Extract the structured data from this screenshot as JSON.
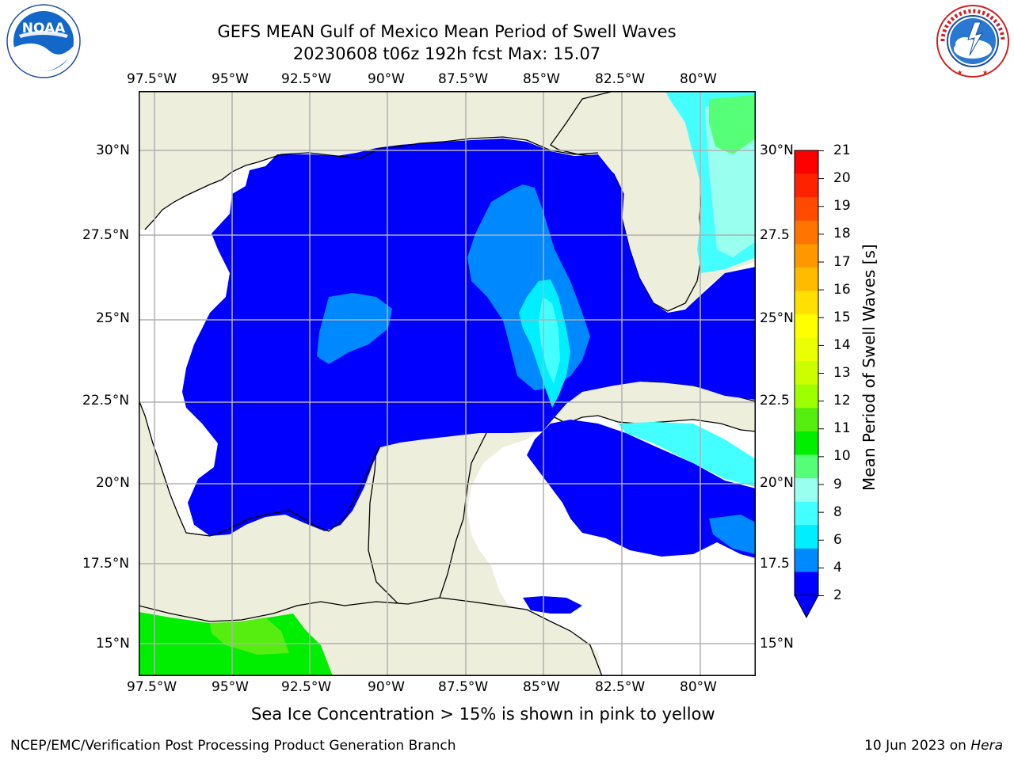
{
  "title": {
    "line1": "GEFS MEAN Gulf of Mexico Mean Period of Swell Waves",
    "line2": "20230608 t06z 192h fcst   Max: 15.07"
  },
  "logos": {
    "left": {
      "icon": "noaa-logo",
      "text": "NOAA",
      "ring_text": "NATIONAL OCEANIC AND ATMOSPHERIC ADMINISTRATION · U.S. DEPARTMENT OF COMMERCE"
    },
    "right": {
      "icon": "nws-logo",
      "ring_text": "NATIONAL WEATHER SERVICE"
    }
  },
  "map": {
    "lon_ticks": [
      "97.5°W",
      "95°W",
      "92.5°W",
      "90°W",
      "87.5°W",
      "85°W",
      "82.5°W",
      "80°W"
    ],
    "lat_ticks_left": [
      "30°N",
      "27.5°N",
      "25°N",
      "22.5°N",
      "20°N",
      "17.5°N",
      "15°N"
    ],
    "lat_ticks_right": [
      "30°N",
      "27.5",
      "25°N",
      "22.5",
      "20°N",
      "17.5",
      "15°N"
    ],
    "colors": {
      "land": "#eeeedd",
      "ocean_low": "#0000ff",
      "grid": "#b0b0b0"
    }
  },
  "colorbar": {
    "label": "Mean Period of Swell Waves [s]",
    "ticks": [
      "21",
      "20",
      "19",
      "18",
      "17",
      "16",
      "15",
      "14",
      "13",
      "12",
      "11",
      "10",
      "9",
      "8",
      "6",
      "4",
      "2"
    ],
    "colors": [
      "#ff0000",
      "#ff2200",
      "#ff4a00",
      "#ff7500",
      "#ff9800",
      "#ffbb00",
      "#ffe000",
      "#ffff00",
      "#eaff00",
      "#cbff00",
      "#9dff00",
      "#55ee10",
      "#00ee00",
      "#55ff77",
      "#99ffee",
      "#44ffff",
      "#00eeff",
      "#0088ff",
      "#0000ff"
    ]
  },
  "footer": {
    "note": "Sea Ice Concentration > 15% is shown in pink to yellow",
    "left": "NCEP/EMC/Verification Post Processing Product Generation Branch",
    "right_prefix": "10 Jun 2023 on ",
    "right_host": "Hera"
  }
}
